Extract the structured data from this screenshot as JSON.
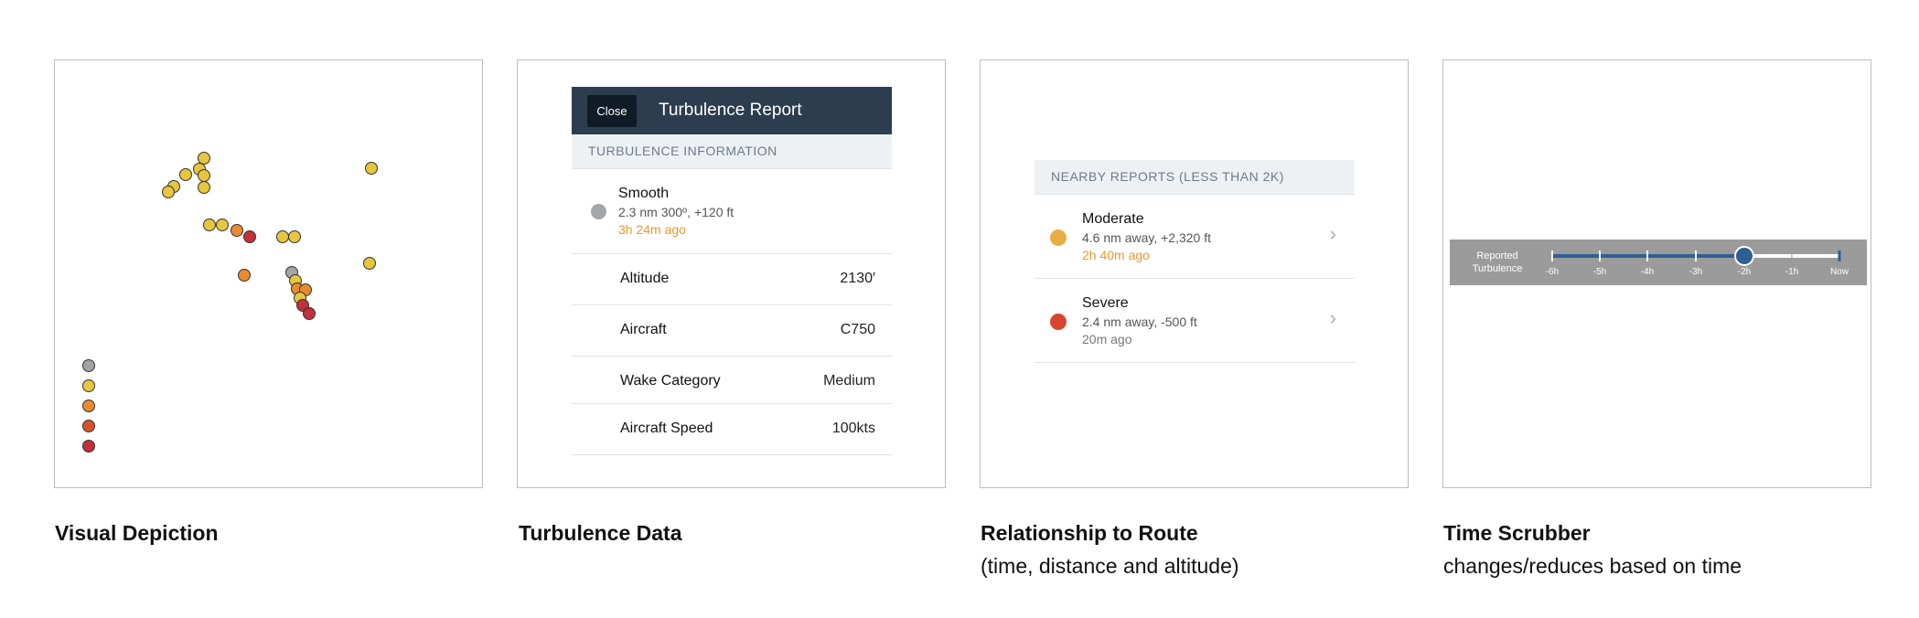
{
  "captions": {
    "visual": "Visual Depiction",
    "data": "Turbulence Data",
    "route": "Relationship to Route",
    "route_sub": "(time, distance and altitude)",
    "scrubber": "Time Scrubber",
    "scrubber_sub": "changes/reduces based on time"
  },
  "colors": {
    "grey": "#a4a4a4",
    "yellow": "#e6c53f",
    "orange": "#ea8a2e",
    "red_orange": "#d9512c",
    "red": "#c2303b",
    "header_bg": "#2b3d4f",
    "time_orange": "#e9982b",
    "moderate": "#e8ae43",
    "severe": "#d9462f",
    "track_blue": "#2e5f95"
  },
  "report": {
    "close_label": "Close",
    "title": "Turbulence Report",
    "section": "TURBULENCE INFORMATION",
    "item": {
      "title": "Smooth",
      "detail": "2.3 nm 300º, +120 ft",
      "time": "3h 24m ago"
    },
    "rows": [
      {
        "label": "Altitude",
        "value": "2130′"
      },
      {
        "label": "Aircraft",
        "value": "C750"
      },
      {
        "label": "Wake Category",
        "value": "Medium"
      },
      {
        "label": "Aircraft Speed",
        "value": "100kts"
      }
    ]
  },
  "nearby": {
    "section": "NEARBY REPORTS (LESS THAN 2K)",
    "items": [
      {
        "title": "Moderate",
        "detail": "4.6 nm away, +2,320 ft",
        "time": "2h 40m ago"
      },
      {
        "title": "Severe",
        "detail": "2.4 nm away, -500 ft",
        "time": "20m ago"
      }
    ]
  },
  "scrubber": {
    "label_line1": "Reported",
    "label_line2": "Turbulence",
    "ticks": [
      "-6h",
      "-5h",
      "-4h",
      "-3h",
      "-2h",
      "-1h",
      "Now"
    ],
    "selected_tick": "-2h"
  }
}
